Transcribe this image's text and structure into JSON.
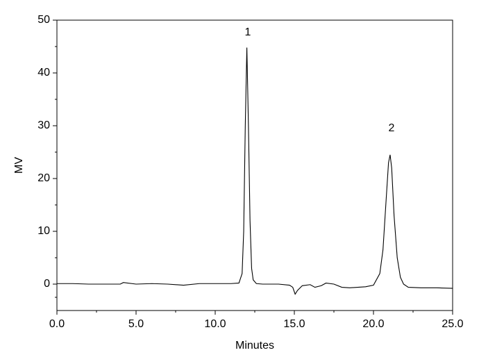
{
  "chart_data": {
    "type": "line",
    "x_label": "Minutes",
    "y_label": "MV",
    "x": [
      0,
      1,
      2,
      3,
      4,
      4.2,
      5,
      6,
      7,
      8,
      9,
      10,
      11,
      11.5,
      11.7,
      11.8,
      11.9,
      12.0,
      12.1,
      12.2,
      12.3,
      12.4,
      12.6,
      13,
      14,
      14.7,
      14.9,
      15.05,
      15.2,
      15.5,
      16,
      16.3,
      16.7,
      17,
      17.5,
      18,
      18.5,
      19,
      19.5,
      20,
      20.4,
      20.6,
      20.8,
      20.95,
      21.05,
      21.15,
      21.3,
      21.5,
      21.7,
      21.9,
      22.2,
      23,
      24,
      25
    ],
    "values": [
      0.1,
      0.1,
      0,
      0,
      0,
      0.3,
      0,
      0.1,
      0,
      -0.2,
      0.1,
      0.1,
      0.1,
      0.2,
      2,
      10,
      30,
      44.8,
      30,
      12,
      3,
      0.8,
      0.1,
      0,
      0,
      -0.2,
      -0.6,
      -1.9,
      -1.2,
      -0.3,
      -0.1,
      -0.6,
      -0.3,
      0.2,
      0,
      -0.6,
      -0.7,
      -0.6,
      -0.5,
      -0.2,
      2,
      6.5,
      16,
      23,
      24.5,
      22,
      13,
      5,
      1.3,
      0,
      -0.6,
      -0.7,
      -0.7,
      -0.8
    ],
    "color": "#000000",
    "xlim": [
      0,
      25
    ],
    "xticks": [
      {
        "value": 0,
        "label": "0.0"
      },
      {
        "value": 5,
        "label": "5.0"
      },
      {
        "value": 10,
        "label": "10.0"
      },
      {
        "value": 15,
        "label": "15.0"
      },
      {
        "value": 20,
        "label": "20.0"
      },
      {
        "value": 25,
        "label": "25.0"
      }
    ],
    "ylim": [
      -5,
      50
    ],
    "yticks": [
      0,
      10,
      20,
      30,
      40,
      50
    ],
    "annotations": [
      {
        "text": "1"
      },
      {
        "text": "2"
      }
    ]
  }
}
